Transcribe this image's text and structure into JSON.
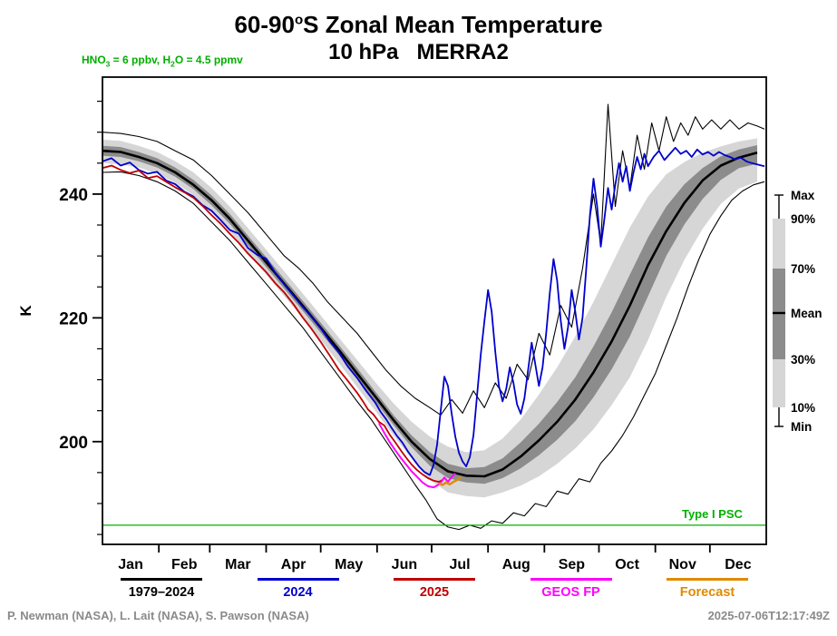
{
  "title": {
    "part1": "60-90",
    "sup": "o",
    "part2": "S Zonal Mean Temperature",
    "line2": "10 hPa   MERRA2"
  },
  "annotation": {
    "p1": "HNO",
    "s1": "3",
    "p2": " = 6 ppbv, H",
    "s2": "2",
    "p3": "O = 4.5 ppmv",
    "color": "#00b000"
  },
  "footer": {
    "credits": "P. Newman (NASA), L. Lait (NASA), S. Pawson (NASA)",
    "timestamp": "2025-07-06T12:17:49Z"
  },
  "legend": [
    {
      "label": "1979–2024",
      "color": "#000000"
    },
    {
      "label": "2024",
      "color": "#0000cd"
    },
    {
      "label": "2025",
      "color": "#c00000"
    },
    {
      "label": "GEOS FP",
      "color": "#ff00ff"
    },
    {
      "label": "Forecast",
      "color": "#e08a00"
    }
  ],
  "chart_data": {
    "type": "line",
    "title": "60-90°S Zonal Mean Temperature",
    "subtitle": "10 hPa   MERRA2",
    "xlabel": "",
    "ylabel": "K",
    "yticks": [
      200,
      220,
      240
    ],
    "ylim": [
      183.4,
      258.9
    ],
    "xlim_days": [
      0,
      365
    ],
    "grid": false,
    "months": [
      "Jan",
      "Feb",
      "Mar",
      "Apr",
      "May",
      "Jun",
      "Jul",
      "Aug",
      "Sep",
      "Oct",
      "Nov",
      "Dec"
    ],
    "month_start_days": [
      0,
      31,
      59,
      90,
      120,
      151,
      181,
      212,
      243,
      273,
      304,
      334,
      365
    ],
    "band_labels": [
      "Max",
      "90%",
      "70%",
      "Mean",
      "30%",
      "10%",
      "Min"
    ],
    "band_colors": {
      "outer": "#d6d6d6",
      "inner": "#8c8c8c"
    },
    "mean_color": "#000000",
    "psc_line": {
      "label": "Type I PSC",
      "value": 186.5,
      "color": "#00b000"
    },
    "climatology": {
      "days": [
        0,
        10,
        20,
        30,
        40,
        50,
        60,
        70,
        80,
        90,
        100,
        110,
        120,
        130,
        140,
        150,
        160,
        170,
        180,
        190,
        200,
        210,
        220,
        230,
        240,
        250,
        260,
        270,
        280,
        290,
        300,
        310,
        320,
        330,
        340,
        350,
        360
      ],
      "mean": [
        247,
        246.8,
        246,
        245,
        243.5,
        241.5,
        239,
        236,
        232.5,
        229,
        225.5,
        222,
        218.4,
        214.8,
        211,
        207.3,
        203.5,
        200,
        197.2,
        195.2,
        194.5,
        194.4,
        195.5,
        197.6,
        200.2,
        203.2,
        206.8,
        211.2,
        216.2,
        222,
        228.5,
        234,
        238.6,
        242.2,
        244.6,
        245.9,
        246.7
      ],
      "p10": [
        245,
        244.8,
        244.3,
        243.3,
        241.8,
        239.8,
        237,
        234,
        230.5,
        227,
        223.5,
        220,
        216.4,
        212.7,
        208.8,
        205,
        201,
        197.2,
        193.8,
        191.8,
        191.2,
        191,
        191.8,
        192.9,
        194.4,
        196.4,
        198.9,
        202,
        205.9,
        210.4,
        216.4,
        223.4,
        229.4,
        234.4,
        238.4,
        240.9,
        242
      ],
      "p30": [
        246.2,
        246,
        245.3,
        244.3,
        242.8,
        240.8,
        238.2,
        235.2,
        231.7,
        228.2,
        224.7,
        221.2,
        217.6,
        214,
        210.2,
        206.5,
        202.7,
        199.1,
        196.1,
        194.1,
        193.4,
        193.2,
        194.1,
        195.7,
        197.8,
        200.3,
        203.3,
        207.2,
        211.7,
        217,
        223.5,
        230,
        235.1,
        239.2,
        242.3,
        244.2,
        244.9
      ],
      "p70": [
        247.8,
        247.6,
        246.8,
        245.8,
        244.3,
        242.3,
        239.8,
        236.8,
        233.3,
        229.8,
        226.3,
        222.8,
        219.2,
        215.6,
        211.9,
        208.1,
        204.3,
        201,
        198.3,
        196.4,
        195.7,
        195.9,
        197.3,
        199.9,
        202.9,
        206.4,
        210.4,
        215.4,
        220.9,
        227,
        233,
        238,
        241.6,
        244.2,
        246.1,
        247.2,
        247.9
      ],
      "p90": [
        248.8,
        248.6,
        247.8,
        246.8,
        245.3,
        243.5,
        241,
        238,
        234.5,
        231,
        227.5,
        224,
        220.4,
        216.8,
        213.2,
        209.6,
        206.2,
        203.2,
        200.8,
        199.2,
        198.3,
        198.6,
        200.5,
        203.6,
        207.6,
        212,
        217,
        222.6,
        228.6,
        234.6,
        239.6,
        243.2,
        245.2,
        246.7,
        247.7,
        248.5,
        249
      ],
      "ext_min": {
        "days": [
          0,
          10,
          20,
          30,
          40,
          50,
          60,
          70,
          80,
          90,
          100,
          110,
          120,
          130,
          140,
          148,
          156,
          164,
          172,
          178,
          184,
          190,
          196,
          202,
          208,
          214,
          220,
          226,
          232,
          238,
          244,
          250,
          256,
          262,
          268,
          274,
          280,
          286,
          292,
          298,
          304,
          310,
          316,
          322,
          328,
          334,
          340,
          346,
          352,
          358,
          364
        ],
        "values": [
          243.5,
          243.6,
          243,
          242,
          240.5,
          238.5,
          235.5,
          232.5,
          229,
          225.5,
          222,
          218.5,
          214.5,
          210.5,
          206.5,
          203.5,
          200,
          196.5,
          193,
          190.5,
          187.5,
          186.2,
          185.8,
          186.5,
          186,
          187.2,
          186.8,
          188.5,
          188,
          190,
          189.5,
          192,
          191.5,
          194,
          193.5,
          196.5,
          198.5,
          201,
          204,
          207.5,
          211,
          215.5,
          220,
          225,
          229.5,
          233.5,
          236.5,
          239,
          240.5,
          241.5,
          242
        ]
      },
      "ext_max": {
        "days": [
          0,
          10,
          20,
          30,
          40,
          50,
          60,
          70,
          80,
          90,
          100,
          108,
          116,
          124,
          132,
          140,
          148,
          156,
          164,
          172,
          180,
          186,
          192,
          198,
          204,
          210,
          216,
          222,
          228,
          234,
          240,
          246,
          252,
          258,
          264,
          270,
          274,
          278,
          282,
          286,
          290,
          294,
          298,
          302,
          306,
          310,
          314,
          318,
          322,
          326,
          330,
          335,
          340,
          345,
          350,
          355,
          360,
          364
        ],
        "values": [
          250,
          249.8,
          249.3,
          248.5,
          247,
          245.5,
          243,
          240,
          237,
          233.5,
          230,
          228,
          225.5,
          222.5,
          220,
          217.5,
          214.5,
          211.5,
          209,
          207,
          205.5,
          204.3,
          206.8,
          204.6,
          208.2,
          205.5,
          209.5,
          207,
          212.5,
          210,
          217.5,
          214,
          222,
          218.5,
          228,
          240,
          232,
          254.5,
          238,
          247,
          241,
          249.5,
          244,
          251.5,
          247,
          252.5,
          248.5,
          251.5,
          249.5,
          252.5,
          250.5,
          252,
          250.5,
          252,
          250.5,
          251.5,
          251,
          250.5
        ]
      }
    },
    "series": [
      {
        "name": "2024",
        "color": "#0000cd",
        "width": 1.8,
        "days": [
          0,
          5,
          10,
          15,
          20,
          25,
          30,
          35,
          40,
          45,
          50,
          55,
          60,
          65,
          70,
          75,
          80,
          85,
          90,
          95,
          100,
          105,
          110,
          115,
          120,
          125,
          130,
          135,
          140,
          145,
          150,
          153,
          156,
          159,
          162,
          165,
          168,
          171,
          174,
          177,
          180,
          182,
          184,
          186,
          188,
          190,
          192,
          194,
          196,
          198,
          200,
          202,
          204,
          206,
          208,
          210,
          212,
          214,
          216,
          218,
          220,
          222,
          224,
          226,
          228,
          230,
          232,
          234,
          236,
          238,
          240,
          242,
          244,
          246,
          248,
          250,
          252,
          254,
          256,
          258,
          260,
          262,
          264,
          266,
          268,
          270,
          272,
          274,
          276,
          278,
          280,
          282,
          284,
          286,
          288,
          290,
          292,
          294,
          296,
          298,
          300,
          303,
          306,
          309,
          312,
          315,
          318,
          321,
          324,
          327,
          330,
          333,
          336,
          339,
          342,
          345,
          348,
          351,
          354,
          357,
          360,
          364
        ],
        "values": [
          245.3,
          245.8,
          244.6,
          245.1,
          243.9,
          243.3,
          243.6,
          242.2,
          241.6,
          240.4,
          239.6,
          238.2,
          237.3,
          235.8,
          234.2,
          233.6,
          231.3,
          230.2,
          229.6,
          227.3,
          225.4,
          223.6,
          221.8,
          220.2,
          218.3,
          216.2,
          214.4,
          212.1,
          210.3,
          208.2,
          206.3,
          204.8,
          203.6,
          202.2,
          200.9,
          199.8,
          198.4,
          197.2,
          196.0,
          195.1,
          194.6,
          196.2,
          199.5,
          205.0,
          210.5,
          209.0,
          204.5,
          200.8,
          198.2,
          196.8,
          196.0,
          197.5,
          201.0,
          207.5,
          214.0,
          219.5,
          224.5,
          221.0,
          214.5,
          209.0,
          206.5,
          208.5,
          212.0,
          209.5,
          206.0,
          204.5,
          207.0,
          211.5,
          216.0,
          212.5,
          209.0,
          212.0,
          217.5,
          224.0,
          229.5,
          226.0,
          219.5,
          215.0,
          218.5,
          224.5,
          221.0,
          216.5,
          220.0,
          228.0,
          236.5,
          242.5,
          238.0,
          231.5,
          236.0,
          241.0,
          237.5,
          241.5,
          245.0,
          242.0,
          244.5,
          240.5,
          243.5,
          246.0,
          244.0,
          246.5,
          244.5,
          246.0,
          247.0,
          245.5,
          246.5,
          247.5,
          246.5,
          247.0,
          246.0,
          247.2,
          246.4,
          246.8,
          246.2,
          246.8,
          246.3,
          246.0,
          245.6,
          245.9,
          245.3,
          245.0,
          244.8,
          244.5
        ]
      },
      {
        "name": "2025",
        "color": "#c00000",
        "width": 1.8,
        "days": [
          0,
          5,
          10,
          15,
          20,
          25,
          30,
          35,
          40,
          45,
          50,
          55,
          60,
          65,
          70,
          75,
          80,
          85,
          90,
          95,
          100,
          105,
          110,
          115,
          120,
          125,
          130,
          135,
          140,
          143,
          146,
          149,
          152,
          155,
          158,
          161,
          164,
          167,
          170,
          173,
          176,
          179,
          182,
          185,
          187
        ],
        "values": [
          244.2,
          244.6,
          243.9,
          243.4,
          243.8,
          242.6,
          242.9,
          242.0,
          241.1,
          240.3,
          239.4,
          238.1,
          236.6,
          235.2,
          233.6,
          232.1,
          230.4,
          228.9,
          227.4,
          225.6,
          224.1,
          222.2,
          220.1,
          218.2,
          216.1,
          213.9,
          211.6,
          209.8,
          207.9,
          206.6,
          205.2,
          204.4,
          203.2,
          202.6,
          201.1,
          199.9,
          198.6,
          197.4,
          196.3,
          195.4,
          194.7,
          194.1,
          193.7,
          193.5,
          193.8
        ]
      },
      {
        "name": "GEOS FP",
        "color": "#ff00ff",
        "width": 2,
        "days": [
          152,
          155,
          158,
          161,
          164,
          167,
          170,
          173,
          176,
          179,
          182,
          184,
          186,
          188,
          190,
          192,
          194
        ],
        "values": [
          203.0,
          201.4,
          199.9,
          198.6,
          197.4,
          196.3,
          195.2,
          194.3,
          193.4,
          192.8,
          192.6,
          192.9,
          193.4,
          194.2,
          193.5,
          194.3,
          194.9
        ]
      },
      {
        "name": "Forecast",
        "color": "#e08a00",
        "width": 2.4,
        "days": [
          185,
          187,
          189,
          191,
          193,
          195,
          197
        ],
        "values": [
          193.3,
          193.0,
          193.4,
          193.1,
          193.5,
          193.8,
          194.2
        ]
      }
    ]
  }
}
